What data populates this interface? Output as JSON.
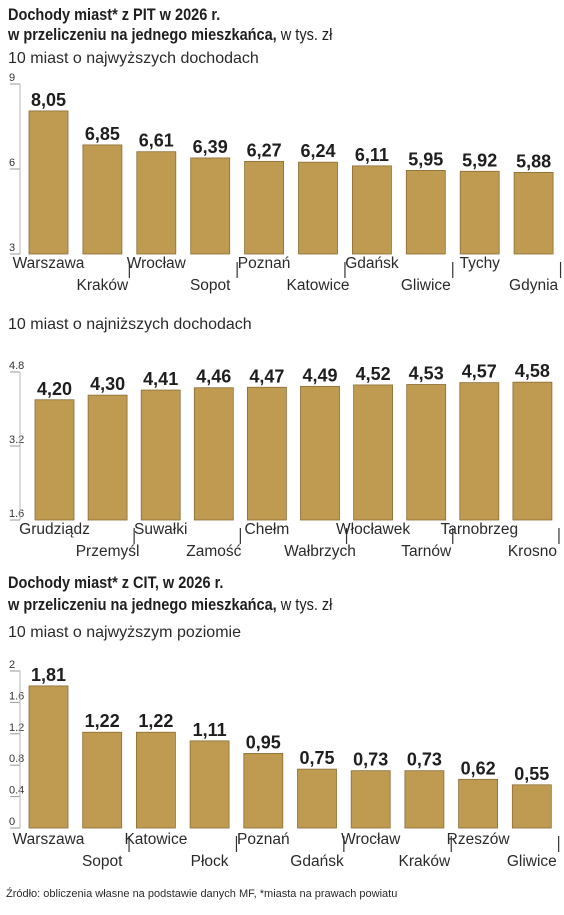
{
  "pit": {
    "title_line1": "Dochody miast* z  PIT w 2026 r.",
    "title_line2": "w przeliczeniu na jednego mieszkańca,",
    "unit": "w tys. zł"
  },
  "cit": {
    "title_line1": "Dochody miast* z CIT, w 2026 r.",
    "title_line2": "w przeliczeniu na jednego mieszkańca,",
    "unit": "w tys. zł"
  },
  "source": "Źródło: obliczenia własne na podstawie danych MF, *miasta na prawach powiatu",
  "colors": {
    "bar": "#bf9b52",
    "bar_stroke": "#8a6d35",
    "text": "#1e1e1e",
    "grid": "#cfcfcf"
  },
  "chart_data": [
    {
      "type": "bar",
      "title": "10 miast o najwyższych dochodach",
      "categories": [
        "Warszawa",
        "Kraków",
        "Wrocław",
        "Sopot",
        "Poznań",
        "Katowice",
        "Gdańsk",
        "Gliwice",
        "Tychy",
        "Gdynia"
      ],
      "values": [
        8.05,
        6.85,
        6.61,
        6.39,
        6.27,
        6.24,
        6.11,
        5.95,
        5.92,
        5.88
      ],
      "value_labels": [
        "8,05",
        "6,85",
        "6,61",
        "6,39",
        "6,27",
        "6,24",
        "6,11",
        "5,95",
        "5,92",
        "5,88"
      ],
      "ylim": [
        3,
        9
      ],
      "yticks": [
        3,
        6,
        9
      ],
      "ytick_labels": [
        "3",
        "6",
        "9"
      ]
    },
    {
      "type": "bar",
      "title": "10 miast o najniższych dochodach",
      "categories": [
        "Grudziądz",
        "Przemyśl",
        "Suwałki",
        "Zamość",
        "Chełm",
        "Wałbrzych",
        "Włocławek",
        "Tarnów",
        "Tarnobrzeg",
        "Krosno"
      ],
      "values": [
        4.2,
        4.3,
        4.41,
        4.46,
        4.47,
        4.49,
        4.52,
        4.53,
        4.57,
        4.58
      ],
      "value_labels": [
        "4,20",
        "4,30",
        "4,41",
        "4,46",
        "4,47",
        "4,49",
        "4,52",
        "4,53",
        "4,57",
        "4,58"
      ],
      "ylim": [
        1.6,
        4.8
      ],
      "yticks": [
        1.6,
        3.2,
        4.8
      ],
      "ytick_labels": [
        "1.6",
        "3.2",
        "4.8"
      ]
    },
    {
      "type": "bar",
      "title": "10 miast o najwyższym poziomie",
      "categories": [
        "Warszawa",
        "Sopot",
        "Katowice",
        "Płock",
        "Poznań",
        "Gdańsk",
        "Wrocław",
        "Kraków",
        "Rzeszów",
        "Gliwice"
      ],
      "values": [
        1.81,
        1.22,
        1.22,
        1.11,
        0.95,
        0.75,
        0.73,
        0.73,
        0.62,
        0.55
      ],
      "value_labels": [
        "1,81",
        "1,22",
        "1,22",
        "1,11",
        "0,95",
        "0,75",
        "0,73",
        "0,73",
        "0,62",
        "0,55"
      ],
      "ylim": [
        0,
        2
      ],
      "yticks": [
        0,
        0.4,
        0.8,
        1.2,
        1.6,
        2
      ],
      "ytick_labels": [
        "0",
        "0.4",
        "0.8",
        "1.2",
        "1.6",
        "2"
      ]
    }
  ]
}
